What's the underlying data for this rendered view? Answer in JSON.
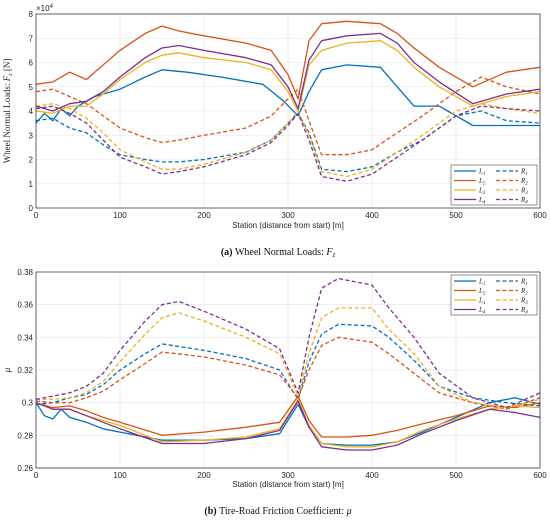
{
  "chart_data": [
    {
      "type": "line",
      "caption_label": "(a)",
      "caption_text": "Wheel Normal Loads:",
      "caption_sym": "F",
      "caption_sub": "z",
      "xlabel": "Station (distance from start) [m]",
      "ylabel_main": "Wheel Normal Loads: ",
      "ylabel_sym": "F",
      "ylabel_sub": "z",
      "ylabel_unit": " [N]",
      "exponent": "×10",
      "exponent_pow": "4",
      "xlim": [
        0,
        600
      ],
      "ylim": [
        0,
        8
      ],
      "xticks": [
        "0",
        "100",
        "200",
        "300",
        "400",
        "500",
        "600"
      ],
      "yticks": [
        "0",
        "1",
        "2",
        "3",
        "4",
        "5",
        "6",
        "7",
        "8"
      ],
      "grid": true,
      "legend_position": "bottom-right",
      "legend": [
        {
          "name": "L",
          "sub": "1",
          "color": "#0072BD",
          "dash": false
        },
        {
          "name": "R",
          "sub": "1",
          "color": "#0072BD",
          "dash": true
        },
        {
          "name": "L",
          "sub": "2",
          "color": "#D95319",
          "dash": false
        },
        {
          "name": "R",
          "sub": "2",
          "color": "#D95319",
          "dash": true
        },
        {
          "name": "L",
          "sub": "3",
          "color": "#EDB120",
          "dash": false
        },
        {
          "name": "R",
          "sub": "3",
          "color": "#EDB120",
          "dash": true
        },
        {
          "name": "L",
          "sub": "4",
          "color": "#7E2F8E",
          "dash": false
        },
        {
          "name": "R",
          "sub": "4",
          "color": "#7E2F8E",
          "dash": true
        }
      ],
      "series": [
        {
          "key": "L1",
          "color": "#0072BD",
          "dash": false,
          "x": [
            0,
            10,
            20,
            30,
            40,
            50,
            70,
            100,
            130,
            150,
            180,
            220,
            270,
            295,
            312,
            325,
            340,
            370,
            410,
            430,
            450,
            480,
            520,
            560,
            600
          ],
          "y": [
            3.5,
            3.9,
            3.6,
            4.1,
            3.8,
            4.2,
            4.6,
            4.9,
            5.4,
            5.7,
            5.6,
            5.4,
            5.1,
            4.4,
            3.8,
            4.8,
            5.7,
            5.9,
            5.8,
            5.0,
            4.2,
            4.2,
            3.4,
            3.4,
            3.4
          ]
        },
        {
          "key": "R1",
          "color": "#0072BD",
          "dash": true,
          "x": [
            0,
            20,
            40,
            60,
            80,
            100,
            130,
            150,
            170,
            200,
            250,
            280,
            300,
            312,
            325,
            340,
            370,
            400,
            430,
            460,
            500,
            530,
            560,
            600
          ],
          "y": [
            3.6,
            3.7,
            3.3,
            3.1,
            2.6,
            2.2,
            2.0,
            1.9,
            1.9,
            2.0,
            2.3,
            2.8,
            3.5,
            3.9,
            3.1,
            1.6,
            1.5,
            1.7,
            2.3,
            2.8,
            3.8,
            4.0,
            3.6,
            3.5
          ]
        },
        {
          "key": "L2",
          "color": "#D95319",
          "dash": false,
          "x": [
            0,
            20,
            40,
            60,
            80,
            100,
            130,
            150,
            170,
            200,
            250,
            280,
            300,
            312,
            325,
            340,
            370,
            410,
            430,
            450,
            480,
            520,
            560,
            600
          ],
          "y": [
            5.1,
            5.2,
            5.6,
            5.3,
            5.9,
            6.5,
            7.2,
            7.5,
            7.3,
            7.1,
            6.8,
            6.5,
            5.5,
            4.5,
            6.9,
            7.6,
            7.7,
            7.6,
            7.2,
            6.6,
            5.8,
            5.0,
            5.6,
            5.8
          ]
        },
        {
          "key": "R2",
          "color": "#D95319",
          "dash": true,
          "x": [
            0,
            20,
            40,
            60,
            80,
            100,
            130,
            150,
            170,
            200,
            250,
            280,
            300,
            312,
            325,
            340,
            370,
            400,
            430,
            460,
            500,
            530,
            560,
            600
          ],
          "y": [
            4.8,
            4.9,
            4.6,
            4.3,
            3.8,
            3.3,
            2.9,
            2.7,
            2.8,
            3.0,
            3.3,
            3.8,
            4.5,
            4.9,
            3.6,
            2.2,
            2.2,
            2.4,
            3.1,
            3.8,
            4.8,
            5.4,
            5.0,
            4.7
          ]
        },
        {
          "key": "L3",
          "color": "#EDB120",
          "dash": false,
          "x": [
            0,
            20,
            40,
            60,
            80,
            100,
            130,
            150,
            170,
            200,
            250,
            280,
            300,
            312,
            325,
            340,
            370,
            410,
            430,
            450,
            480,
            520,
            560,
            600
          ],
          "y": [
            4.0,
            3.9,
            4.2,
            4.2,
            4.7,
            5.3,
            6.0,
            6.3,
            6.4,
            6.2,
            6.0,
            5.7,
            4.8,
            4.0,
            5.9,
            6.5,
            6.8,
            6.9,
            6.5,
            5.8,
            5.0,
            4.2,
            4.6,
            4.8
          ]
        },
        {
          "key": "R3",
          "color": "#EDB120",
          "dash": true,
          "x": [
            0,
            20,
            40,
            60,
            80,
            100,
            130,
            150,
            170,
            200,
            250,
            280,
            300,
            312,
            325,
            340,
            370,
            400,
            430,
            460,
            500,
            530,
            560,
            600
          ],
          "y": [
            4.2,
            4.3,
            4.1,
            3.7,
            3.1,
            2.4,
            1.9,
            1.6,
            1.6,
            1.8,
            2.3,
            2.8,
            3.5,
            4.0,
            3.0,
            1.5,
            1.3,
            1.6,
            2.3,
            3.0,
            4.0,
            4.3,
            4.1,
            3.9
          ]
        },
        {
          "key": "L4",
          "color": "#7E2F8E",
          "dash": false,
          "x": [
            0,
            20,
            40,
            60,
            80,
            100,
            130,
            150,
            170,
            200,
            250,
            280,
            300,
            312,
            325,
            340,
            370,
            410,
            430,
            450,
            480,
            520,
            560,
            600
          ],
          "y": [
            4.2,
            4.0,
            4.3,
            4.4,
            4.8,
            5.4,
            6.2,
            6.6,
            6.7,
            6.5,
            6.2,
            5.9,
            5.0,
            4.1,
            6.1,
            6.9,
            7.1,
            7.2,
            6.8,
            6.0,
            5.2,
            4.3,
            4.7,
            4.9
          ]
        },
        {
          "key": "R4",
          "color": "#7E2F8E",
          "dash": true,
          "x": [
            0,
            20,
            40,
            60,
            80,
            100,
            130,
            150,
            170,
            200,
            250,
            280,
            300,
            312,
            325,
            340,
            370,
            400,
            430,
            460,
            500,
            530,
            560,
            600
          ],
          "y": [
            4.1,
            4.2,
            3.9,
            3.5,
            2.8,
            2.1,
            1.7,
            1.4,
            1.5,
            1.7,
            2.2,
            2.7,
            3.4,
            3.9,
            2.8,
            1.3,
            1.1,
            1.4,
            2.1,
            2.8,
            3.8,
            4.2,
            4.1,
            4.0
          ]
        }
      ]
    },
    {
      "type": "line",
      "caption_label": "(b)",
      "caption_text": "Tire-Road Friction Coefficient:",
      "caption_sym": "μ",
      "xlabel": "Station (distance from start) [m]",
      "ylabel": "μ",
      "xlim": [
        0,
        600
      ],
      "ylim": [
        0.26,
        0.38
      ],
      "xticks": [
        "0",
        "100",
        "200",
        "300",
        "400",
        "500",
        "600"
      ],
      "yticks": [
        "0.26",
        "0.28",
        "0.3",
        "0.32",
        "0.34",
        "0.36",
        "0.38"
      ],
      "yvals": [
        0.26,
        0.28,
        0.3,
        0.32,
        0.34,
        0.36,
        0.38
      ],
      "grid": true,
      "legend_position": "top-right",
      "legend": [
        {
          "name": "L",
          "sub": "1",
          "color": "#0072BD",
          "dash": false
        },
        {
          "name": "R",
          "sub": "1",
          "color": "#0072BD",
          "dash": true
        },
        {
          "name": "L",
          "sub": "2",
          "color": "#D95319",
          "dash": false
        },
        {
          "name": "R",
          "sub": "2",
          "color": "#D95319",
          "dash": true
        },
        {
          "name": "L",
          "sub": "3",
          "color": "#EDB120",
          "dash": false
        },
        {
          "name": "R",
          "sub": "3",
          "color": "#EDB120",
          "dash": true
        },
        {
          "name": "L",
          "sub": "4",
          "color": "#7E2F8E",
          "dash": false
        },
        {
          "name": "R",
          "sub": "4",
          "color": "#7E2F8E",
          "dash": true
        }
      ],
      "series": [
        {
          "key": "L1",
          "color": "#0072BD",
          "dash": false,
          "x": [
            0,
            10,
            20,
            30,
            40,
            60,
            80,
            100,
            150,
            200,
            250,
            290,
            312,
            325,
            340,
            370,
            400,
            430,
            460,
            500,
            540,
            570,
            600
          ],
          "y": [
            0.3,
            0.292,
            0.29,
            0.296,
            0.291,
            0.288,
            0.284,
            0.282,
            0.277,
            0.277,
            0.278,
            0.281,
            0.299,
            0.285,
            0.275,
            0.274,
            0.274,
            0.276,
            0.282,
            0.291,
            0.3,
            0.303,
            0.299
          ]
        },
        {
          "key": "R1",
          "color": "#0072BD",
          "dash": true,
          "x": [
            0,
            20,
            40,
            60,
            80,
            100,
            130,
            150,
            200,
            250,
            290,
            312,
            325,
            340,
            360,
            400,
            420,
            450,
            480,
            520,
            560,
            600
          ],
          "y": [
            0.299,
            0.3,
            0.303,
            0.305,
            0.311,
            0.32,
            0.33,
            0.336,
            0.332,
            0.327,
            0.32,
            0.302,
            0.325,
            0.342,
            0.348,
            0.347,
            0.34,
            0.326,
            0.31,
            0.303,
            0.3,
            0.298
          ]
        },
        {
          "key": "L2",
          "color": "#D95319",
          "dash": false,
          "x": [
            0,
            20,
            40,
            60,
            80,
            100,
            150,
            200,
            250,
            290,
            312,
            325,
            340,
            370,
            400,
            430,
            460,
            500,
            540,
            570,
            600
          ],
          "y": [
            0.3,
            0.297,
            0.298,
            0.295,
            0.291,
            0.288,
            0.28,
            0.282,
            0.285,
            0.288,
            0.304,
            0.289,
            0.279,
            0.279,
            0.28,
            0.283,
            0.287,
            0.292,
            0.298,
            0.297,
            0.3
          ]
        },
        {
          "key": "R2",
          "color": "#D95319",
          "dash": true,
          "x": [
            0,
            20,
            40,
            60,
            80,
            100,
            130,
            150,
            200,
            250,
            290,
            312,
            325,
            340,
            360,
            400,
            420,
            450,
            480,
            520,
            560,
            600
          ],
          "y": [
            0.301,
            0.3,
            0.3,
            0.303,
            0.307,
            0.314,
            0.324,
            0.331,
            0.328,
            0.323,
            0.317,
            0.303,
            0.32,
            0.335,
            0.34,
            0.337,
            0.33,
            0.318,
            0.306,
            0.3,
            0.296,
            0.303
          ]
        },
        {
          "key": "L3",
          "color": "#EDB120",
          "dash": false,
          "x": [
            0,
            20,
            40,
            60,
            80,
            100,
            150,
            200,
            250,
            290,
            312,
            325,
            340,
            370,
            400,
            430,
            460,
            500,
            540,
            570,
            600
          ],
          "y": [
            0.3,
            0.296,
            0.296,
            0.292,
            0.289,
            0.286,
            0.276,
            0.277,
            0.279,
            0.284,
            0.302,
            0.286,
            0.275,
            0.273,
            0.273,
            0.276,
            0.283,
            0.29,
            0.296,
            0.298,
            0.297
          ]
        },
        {
          "key": "R3",
          "color": "#EDB120",
          "dash": true,
          "x": [
            0,
            20,
            40,
            60,
            80,
            100,
            130,
            150,
            170,
            200,
            250,
            290,
            312,
            325,
            340,
            360,
            400,
            420,
            450,
            480,
            520,
            560,
            600
          ],
          "y": [
            0.302,
            0.302,
            0.303,
            0.306,
            0.313,
            0.325,
            0.342,
            0.352,
            0.355,
            0.35,
            0.34,
            0.33,
            0.304,
            0.33,
            0.352,
            0.358,
            0.358,
            0.345,
            0.33,
            0.31,
            0.3,
            0.297,
            0.302
          ]
        },
        {
          "key": "L4",
          "color": "#7E2F8E",
          "dash": false,
          "x": [
            0,
            20,
            40,
            60,
            80,
            100,
            150,
            200,
            250,
            290,
            312,
            325,
            340,
            370,
            400,
            430,
            460,
            500,
            540,
            570,
            600
          ],
          "y": [
            0.3,
            0.296,
            0.296,
            0.292,
            0.288,
            0.284,
            0.275,
            0.275,
            0.278,
            0.283,
            0.301,
            0.285,
            0.273,
            0.271,
            0.271,
            0.274,
            0.281,
            0.289,
            0.296,
            0.294,
            0.291
          ]
        },
        {
          "key": "R4",
          "color": "#7E2F8E",
          "dash": true,
          "x": [
            0,
            20,
            40,
            60,
            80,
            100,
            130,
            150,
            170,
            200,
            250,
            290,
            312,
            325,
            340,
            360,
            400,
            420,
            450,
            480,
            520,
            560,
            600
          ],
          "y": [
            0.302,
            0.304,
            0.306,
            0.31,
            0.318,
            0.332,
            0.35,
            0.36,
            0.362,
            0.356,
            0.345,
            0.333,
            0.306,
            0.34,
            0.37,
            0.376,
            0.372,
            0.358,
            0.34,
            0.318,
            0.303,
            0.297,
            0.306
          ]
        }
      ]
    }
  ]
}
